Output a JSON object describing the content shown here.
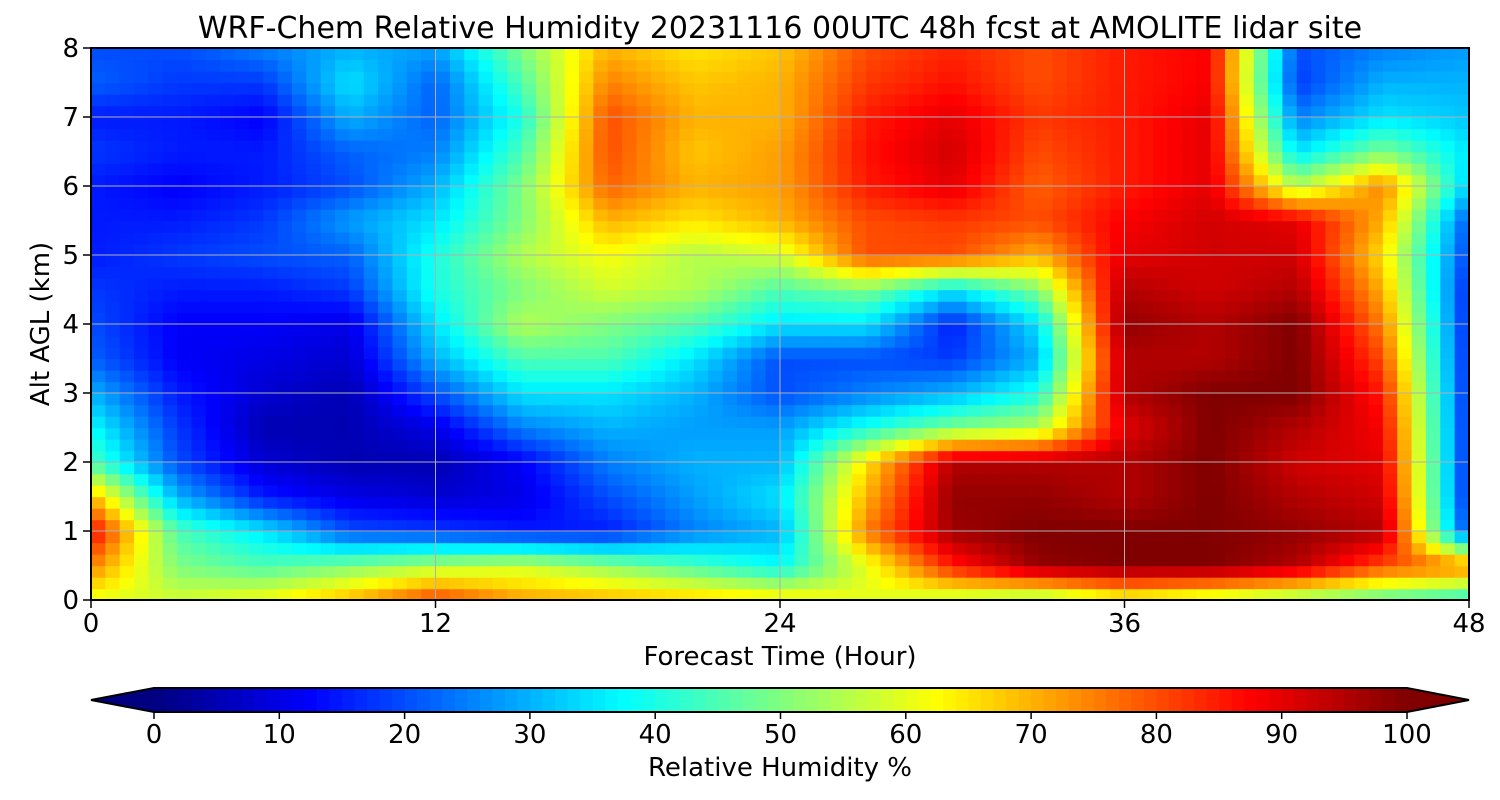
{
  "chart_data": {
    "type": "heatmap",
    "title": "WRF-Chem Relative Humidity 20231116 00UTC 48h fcst at AMOLITE lidar site",
    "xlabel": "Forecast Time (Hour)",
    "ylabel": "Alt AGL (km)",
    "xlim": [
      0,
      48
    ],
    "ylim": [
      0,
      8
    ],
    "x_ticks": [
      "0",
      "12",
      "24",
      "36",
      "48"
    ],
    "y_ticks": [
      "0",
      "1",
      "2",
      "3",
      "4",
      "5",
      "6",
      "7",
      "8"
    ],
    "grid": true,
    "colormap": "jet",
    "colorbar": {
      "label": "Relative Humidity %",
      "range": [
        0,
        100
      ],
      "ticks": [
        "0",
        "10",
        "20",
        "30",
        "40",
        "50",
        "60",
        "70",
        "80",
        "90",
        "100"
      ],
      "extend": "both",
      "orientation": "horizontal",
      "placement": "bottom"
    },
    "x_hours": [
      0,
      3,
      6,
      9,
      12,
      15,
      18,
      21,
      24,
      27,
      30,
      33,
      36,
      39,
      42,
      45,
      48
    ],
    "z_km": [
      0,
      0.5,
      1,
      1.5,
      2,
      2.5,
      3,
      3.5,
      4,
      4.5,
      5,
      5.5,
      6,
      6.5,
      7,
      7.5,
      8
    ],
    "values": [
      [
        60,
        58,
        62,
        70,
        82,
        72,
        70,
        68,
        65,
        60,
        55,
        50,
        60,
        55,
        50,
        45,
        40
      ],
      [
        75,
        50,
        45,
        50,
        55,
        58,
        52,
        45,
        38,
        60,
        85,
        98,
        100,
        100,
        95,
        80,
        75
      ],
      [
        88,
        45,
        35,
        20,
        18,
        15,
        15,
        25,
        30,
        75,
        97,
        100,
        100,
        100,
        98,
        95,
        18
      ],
      [
        70,
        30,
        15,
        10,
        8,
        10,
        20,
        28,
        35,
        70,
        98,
        98,
        95,
        100,
        95,
        92,
        15
      ],
      [
        45,
        20,
        8,
        5,
        5,
        12,
        25,
        30,
        30,
        65,
        95,
        95,
        95,
        100,
        92,
        90,
        15
      ],
      [
        38,
        18,
        5,
        5,
        10,
        25,
        30,
        28,
        28,
        40,
        50,
        55,
        90,
        100,
        95,
        88,
        15
      ],
      [
        30,
        15,
        8,
        5,
        20,
        35,
        35,
        30,
        20,
        25,
        30,
        40,
        95,
        100,
        100,
        85,
        15
      ],
      [
        22,
        12,
        10,
        8,
        30,
        45,
        45,
        35,
        20,
        20,
        18,
        30,
        95,
        95,
        100,
        80,
        15
      ],
      [
        20,
        12,
        12,
        10,
        35,
        55,
        50,
        45,
        35,
        35,
        15,
        35,
        98,
        95,
        100,
        75,
        15
      ],
      [
        18,
        15,
        15,
        18,
        40,
        50,
        58,
        55,
        45,
        50,
        35,
        50,
        95,
        92,
        95,
        70,
        15
      ],
      [
        15,
        18,
        20,
        22,
        40,
        55,
        62,
        55,
        58,
        80,
        80,
        70,
        90,
        92,
        92,
        65,
        18
      ],
      [
        15,
        15,
        18,
        28,
        35,
        50,
        70,
        65,
        70,
        80,
        82,
        80,
        88,
        92,
        90,
        70,
        20
      ],
      [
        15,
        12,
        15,
        20,
        30,
        50,
        78,
        70,
        72,
        85,
        90,
        78,
        85,
        90,
        55,
        75,
        32
      ],
      [
        18,
        15,
        15,
        22,
        25,
        45,
        80,
        68,
        72,
        86,
        92,
        80,
        85,
        90,
        35,
        50,
        35
      ],
      [
        15,
        15,
        12,
        30,
        22,
        40,
        80,
        70,
        70,
        85,
        90,
        82,
        85,
        90,
        25,
        35,
        32
      ],
      [
        22,
        18,
        18,
        35,
        22,
        45,
        75,
        68,
        70,
        82,
        86,
        80,
        85,
        88,
        18,
        30,
        30
      ],
      [
        20,
        20,
        25,
        30,
        28,
        50,
        70,
        65,
        68,
        80,
        84,
        80,
        85,
        88,
        20,
        25,
        28
      ]
    ]
  }
}
